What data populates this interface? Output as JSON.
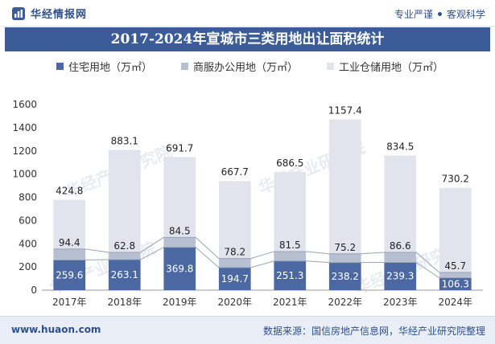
{
  "header": {
    "brand": "华经情报网",
    "slogan_left": "专业严谨",
    "slogan_right": "客观科学"
  },
  "footer": {
    "site": "www.huaon.com",
    "source": "数据来源：国信房地产信息网，华经产业研究院整理"
  },
  "watermark": "华经产业研究院",
  "colors": {
    "residential": "#4b68a3",
    "commercial": "#b7c0d2",
    "industrial": "#e1e4ec",
    "title_bg": "#3b5c96"
  },
  "chart_data": {
    "type": "bar",
    "stacked": true,
    "title": "2017-2024年宣城市三类用地出让面积统计",
    "categories": [
      "2017年",
      "2018年",
      "2019年",
      "2020年",
      "2021年",
      "2022年",
      "2023年",
      "2024年"
    ],
    "series": [
      {
        "name": "住宅用地（万㎡）",
        "values": [
          259.6,
          263.1,
          369.8,
          194.7,
          251.3,
          238.2,
          239.3,
          106.3
        ]
      },
      {
        "name": "商服办公用地（万㎡）",
        "values": [
          94.4,
          62.8,
          84.5,
          78.2,
          81.5,
          75.2,
          86.6,
          45.7
        ]
      },
      {
        "name": "工业仓储用地（万㎡）",
        "values": [
          424.8,
          883.1,
          691.7,
          667.7,
          686.5,
          1157.4,
          834.5,
          730.2
        ]
      }
    ],
    "ylim": [
      0,
      1600
    ],
    "yticks": [
      0,
      200,
      400,
      600,
      800,
      1000,
      1200,
      1400,
      1600
    ],
    "xlabel": "",
    "ylabel": "",
    "legend": "top",
    "grid": false
  }
}
